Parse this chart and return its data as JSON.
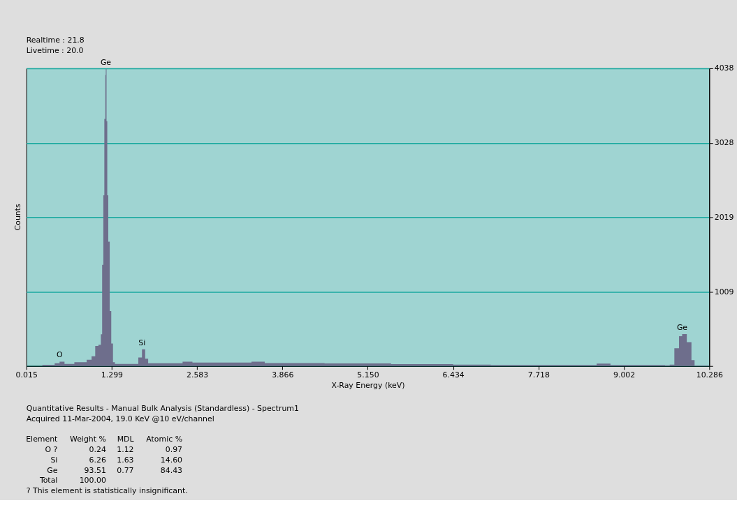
{
  "chart_data": {
    "type": "area",
    "xlabel": "X-Ray Energy (keV)",
    "ylabel": "Counts",
    "x": [
      0.015,
      0.256,
      0.441,
      0.515,
      0.589,
      0.737,
      0.922,
      0.996,
      1.051,
      1.099,
      1.136,
      1.155,
      1.173,
      1.188,
      1.203,
      1.21,
      1.221,
      1.232,
      1.247,
      1.269,
      1.292,
      1.318,
      1.347,
      1.662,
      1.699,
      1.754,
      1.802,
      1.847,
      2.106,
      2.365,
      2.513,
      3.401,
      3.6,
      4.5,
      5.5,
      6.434,
      7.0,
      8.592,
      8.8,
      9.621,
      9.691,
      9.761,
      9.831,
      9.878,
      9.948,
      10.018,
      10.065,
      10.286
    ],
    "series": [
      {
        "color": "#6e6e8c",
        "values": [
          0,
          16,
          38,
          60,
          28,
          53,
          85,
          132,
          273,
          289,
          430,
          1373,
          2316,
          3352,
          3949,
          4028,
          3321,
          2316,
          1687,
          745,
          305,
          53,
          28,
          28,
          116,
          226,
          100,
          38,
          38,
          60,
          47,
          60,
          40,
          35,
          25,
          20,
          15,
          32,
          15,
          10,
          20,
          242,
          404,
          432,
          323,
          81,
          8,
          0
        ]
      }
    ],
    "xlim": [
      0.015,
      10.286
    ],
    "xticks": [
      0.015,
      1.299,
      2.583,
      3.866,
      {
        "value": 5.15,
        "label": "5.150"
      },
      6.434,
      7.718,
      9.002,
      10.286
    ],
    "ylim": [
      0,
      4038
    ],
    "yticks": [
      {
        "value": 0,
        "label": null
      },
      1009,
      2019,
      3028,
      4038
    ],
    "grid": "y",
    "annotations": [
      {
        "text": "O",
        "x": 0.515,
        "y": 60
      },
      {
        "text": "Ge",
        "x": 1.21,
        "y": 4028
      },
      {
        "text": "Si",
        "x": 1.754,
        "y": 226
      },
      {
        "text": "Ge",
        "x": 9.878,
        "y": 432
      },
      "Realtime : 21.8",
      "Livetime : 20.0",
      "Quantitative Results - Manual Bulk Analysis (Standardless) - Spectrum1",
      "Acquired 11-Mar-2004, 19.0 KeV @10 eV/channel",
      "Element   Weight %   MDL   Atomic %",
      "   O ?       0.24    1.12      0.97",
      "    Si       6.26    1.63     14.60",
      "    Ge      93.51    0.77     84.43",
      "  Total    100.00",
      "? This element is statistically insignificant."
    ]
  }
}
